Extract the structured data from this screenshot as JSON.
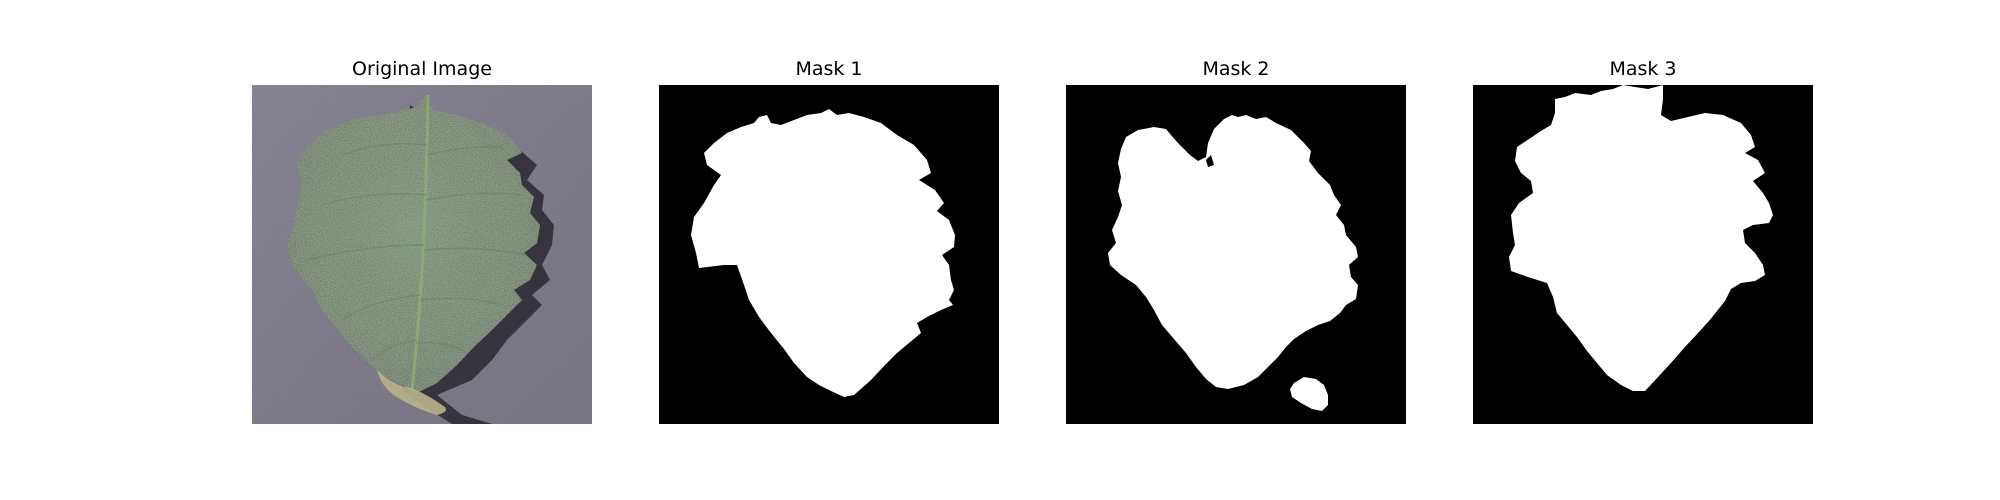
{
  "figure": {
    "panels": [
      {
        "title": "Original Image",
        "image_kind": "photo-leaf"
      },
      {
        "title": "Mask 1",
        "image_kind": "binary-mask"
      },
      {
        "title": "Mask 2",
        "image_kind": "binary-mask"
      },
      {
        "title": "Mask 3",
        "image_kind": "binary-mask"
      }
    ]
  },
  "colors": {
    "background": "#ffffff",
    "mask_background": "#000000",
    "mask_foreground": "#ffffff",
    "leaf_green": "#3f5a35",
    "leaf_dark": "#2a3c25",
    "surface_gray": "#8a8695"
  }
}
